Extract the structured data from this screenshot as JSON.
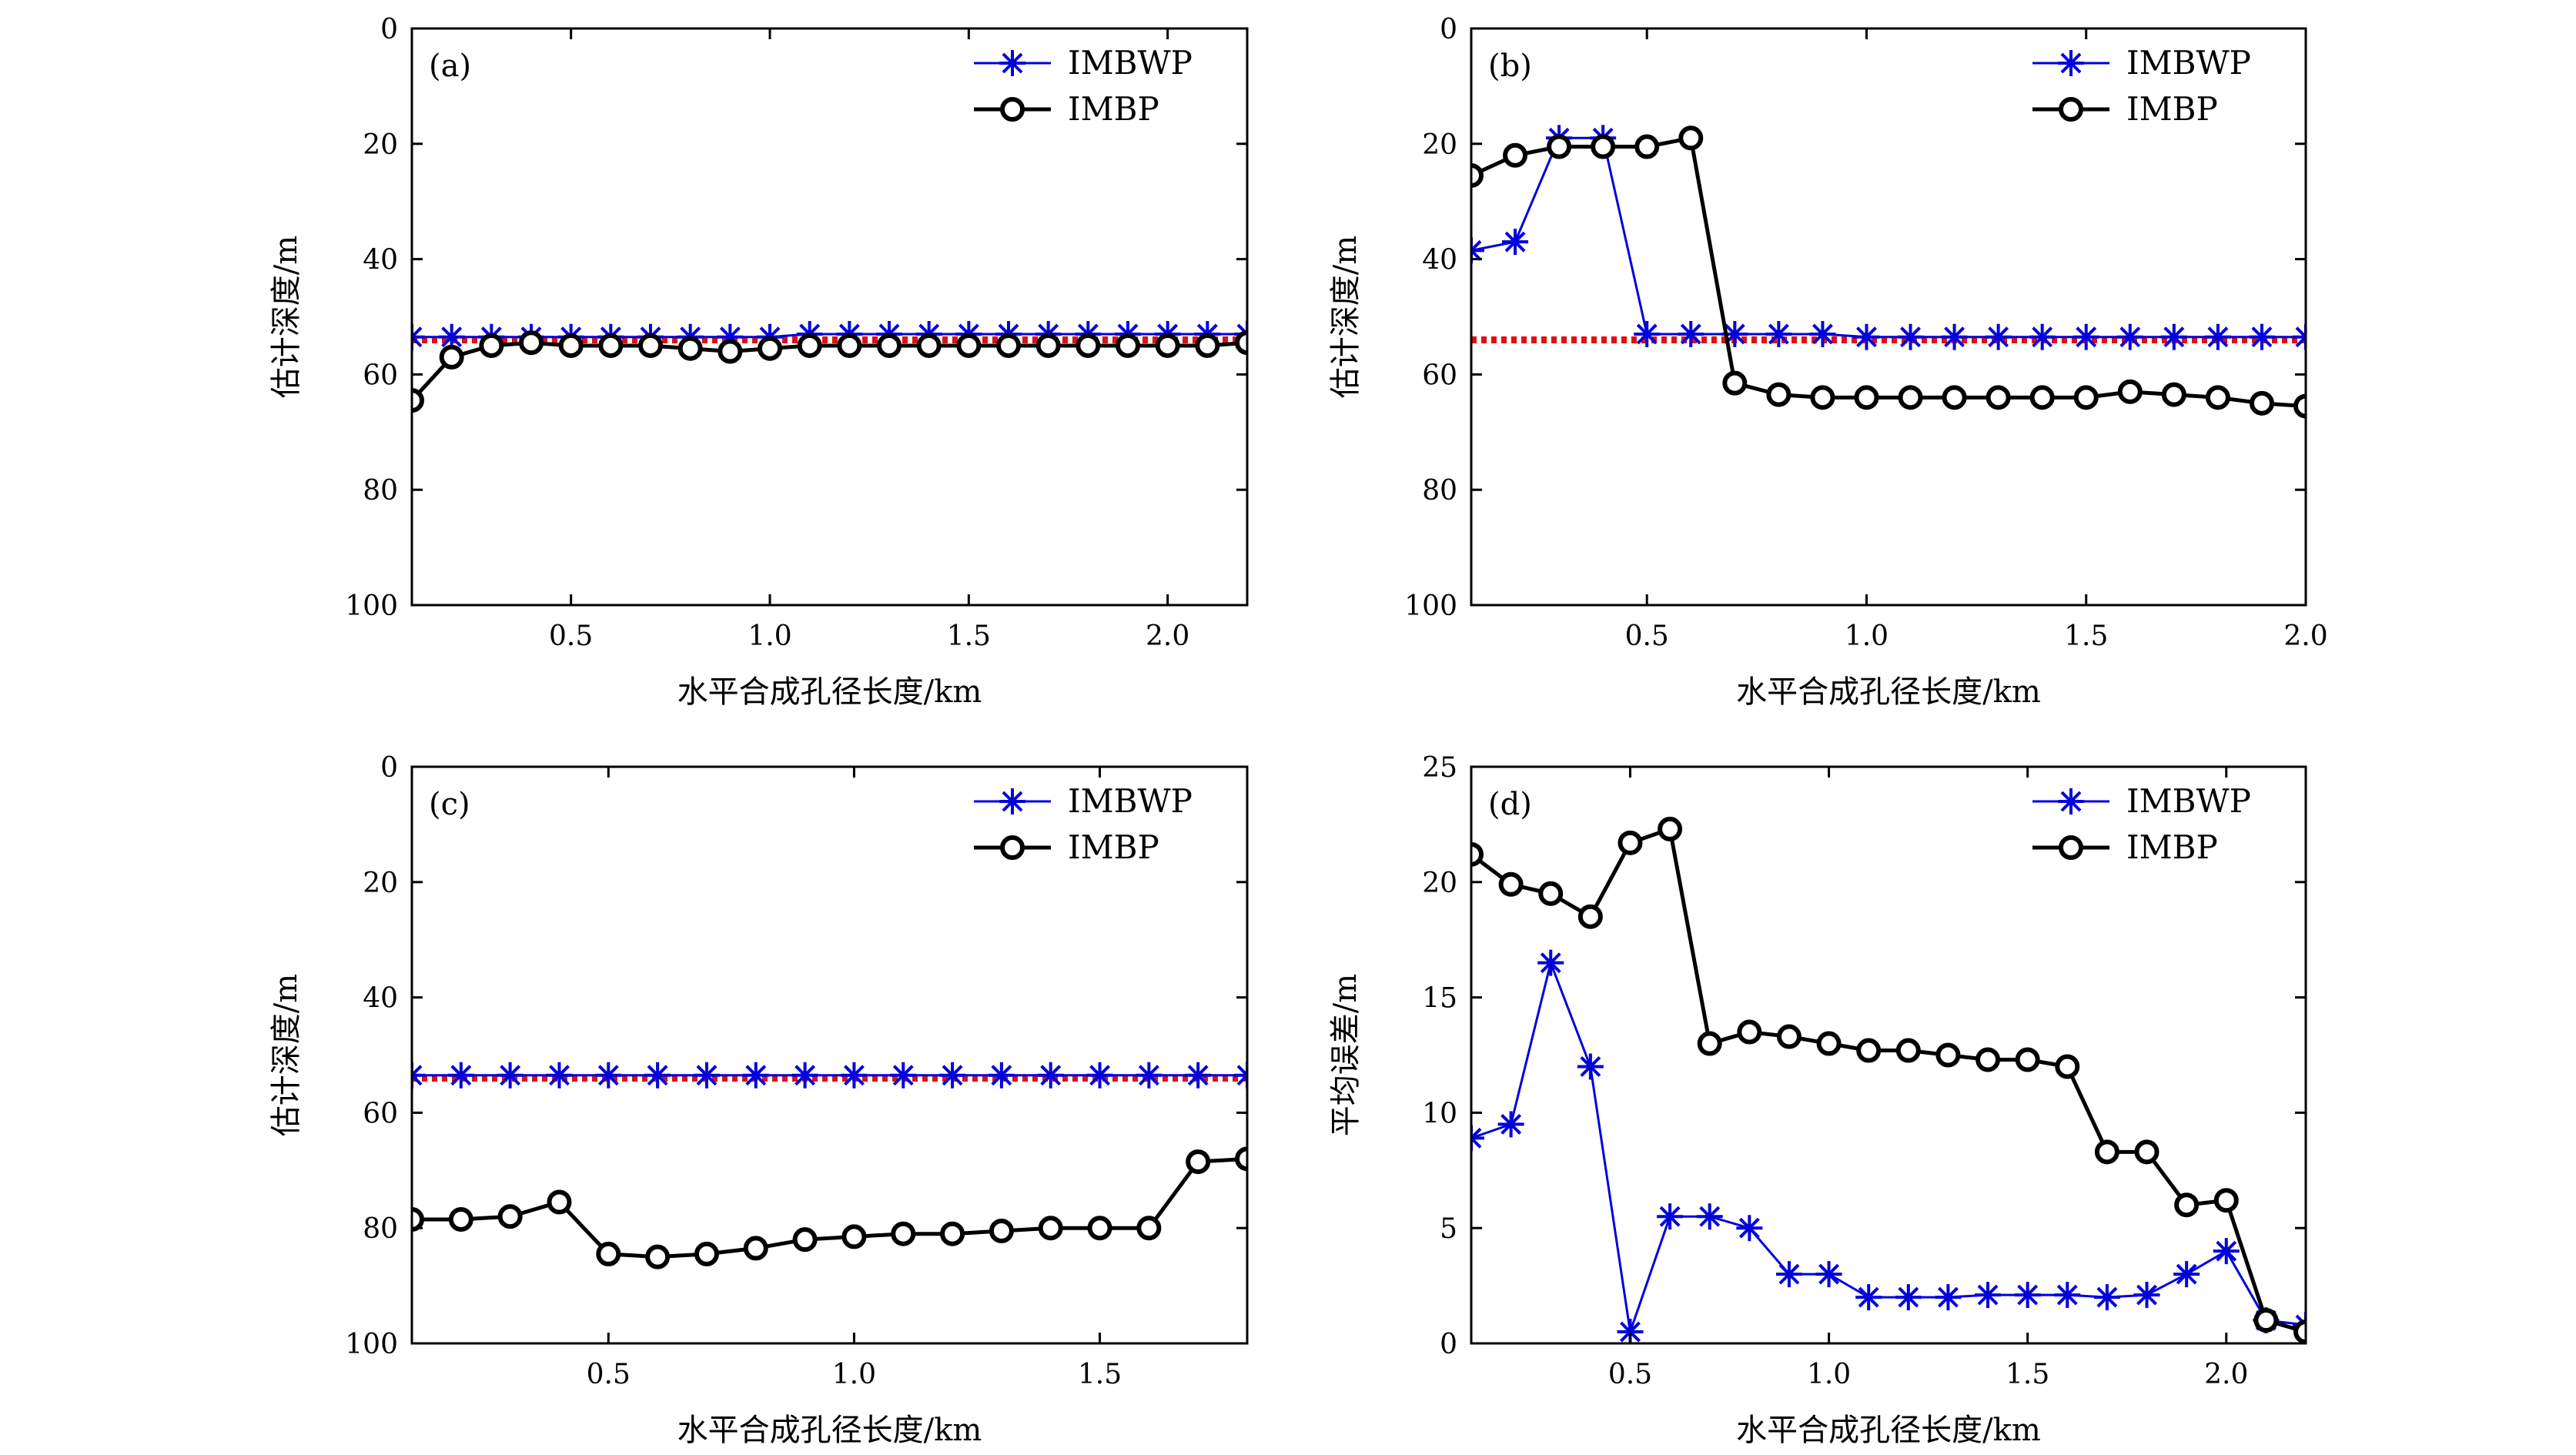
{
  "figure": {
    "background": "#ffffff",
    "colors": {
      "imbwp": "#0000dd",
      "imbp": "#000000",
      "reference": "#e01010",
      "axes": "#000000"
    }
  },
  "chart_data": [
    {
      "type": "line",
      "panel_label": "(a)",
      "xlabel": "水平合成孔径长度/km",
      "ylabel": "估计深度/m",
      "xlim": [
        0.1,
        2.2
      ],
      "ylim": [
        100,
        0
      ],
      "y_inverted": true,
      "xticks": [
        0.5,
        1.0,
        1.5,
        2.0
      ],
      "xticklabels": [
        "0.5",
        "1.0",
        "1.5",
        "2.0"
      ],
      "yticks": [
        0,
        20,
        40,
        60,
        80,
        100
      ],
      "yticklabels": [
        "0",
        "20",
        "40",
        "60",
        "80",
        "100"
      ],
      "legend_position": "top-right",
      "reference_line": {
        "y": 54,
        "style": "dotted"
      },
      "series": [
        {
          "name": "IMBWP",
          "marker": "asterisk",
          "x": [
            0.1,
            0.2,
            0.3,
            0.4,
            0.5,
            0.6,
            0.7,
            0.8,
            0.9,
            1.0,
            1.1,
            1.2,
            1.3,
            1.4,
            1.5,
            1.6,
            1.7,
            1.8,
            1.9,
            2.0,
            2.1,
            2.2
          ],
          "y": [
            53.5,
            53.5,
            53.5,
            53.5,
            53.5,
            53.5,
            53.5,
            53.5,
            53.5,
            53.5,
            53,
            53,
            53,
            53,
            53,
            53,
            53,
            53,
            53,
            53,
            53,
            53
          ]
        },
        {
          "name": "IMBP",
          "marker": "circle",
          "x": [
            0.1,
            0.2,
            0.3,
            0.4,
            0.5,
            0.6,
            0.7,
            0.8,
            0.9,
            1.0,
            1.1,
            1.2,
            1.3,
            1.4,
            1.5,
            1.6,
            1.7,
            1.8,
            1.9,
            2.0,
            2.1,
            2.2
          ],
          "y": [
            64.5,
            57,
            55,
            54.5,
            55,
            55,
            55,
            55.5,
            56,
            55.5,
            55,
            55,
            55,
            55,
            55,
            55,
            55,
            55,
            55,
            55,
            55,
            54.5
          ]
        }
      ]
    },
    {
      "type": "line",
      "panel_label": "(b)",
      "xlabel": "水平合成孔径长度/km",
      "ylabel": "估计深度/m",
      "xlim": [
        0.1,
        2.0
      ],
      "ylim": [
        100,
        0
      ],
      "y_inverted": true,
      "xticks": [
        0.5,
        1.0,
        1.5,
        2.0
      ],
      "xticklabels": [
        "0.5",
        "1.0",
        "1.5",
        "2.0"
      ],
      "yticks": [
        0,
        20,
        40,
        60,
        80,
        100
      ],
      "yticklabels": [
        "0",
        "20",
        "40",
        "60",
        "80",
        "100"
      ],
      "legend_position": "top-right",
      "reference_line": {
        "y": 54,
        "style": "dotted"
      },
      "series": [
        {
          "name": "IMBWP",
          "marker": "asterisk",
          "x": [
            0.1,
            0.2,
            0.3,
            0.4,
            0.5,
            0.6,
            0.7,
            0.8,
            0.9,
            1.0,
            1.1,
            1.2,
            1.3,
            1.4,
            1.5,
            1.6,
            1.7,
            1.8,
            1.9,
            2.0
          ],
          "y": [
            38.5,
            37,
            19,
            19,
            53,
            53,
            53,
            53,
            53,
            53.5,
            53.5,
            53.5,
            53.5,
            53.5,
            53.5,
            53.5,
            53.5,
            53.5,
            53.5,
            53.5
          ]
        },
        {
          "name": "IMBP",
          "marker": "circle",
          "x": [
            0.1,
            0.2,
            0.3,
            0.4,
            0.5,
            0.6,
            0.7,
            0.8,
            0.9,
            1.0,
            1.1,
            1.2,
            1.3,
            1.4,
            1.5,
            1.6,
            1.7,
            1.8,
            1.9,
            2.0
          ],
          "y": [
            25.5,
            22,
            20.5,
            20.5,
            20.5,
            19,
            61.5,
            63.5,
            64,
            64,
            64,
            64,
            64,
            64,
            64,
            63,
            63.5,
            64,
            65,
            65.5
          ]
        }
      ]
    },
    {
      "type": "line",
      "panel_label": "(c)",
      "xlabel": "水平合成孔径长度/km",
      "ylabel": "估计深度/m",
      "xlim": [
        0.1,
        1.8
      ],
      "ylim": [
        100,
        0
      ],
      "y_inverted": true,
      "xticks": [
        0.5,
        1.0,
        1.5
      ],
      "xticklabels": [
        "0.5",
        "1.0",
        "1.5"
      ],
      "yticks": [
        0,
        20,
        40,
        60,
        80,
        100
      ],
      "yticklabels": [
        "0",
        "20",
        "40",
        "60",
        "80",
        "100"
      ],
      "legend_position": "top-right",
      "reference_line": {
        "y": 54,
        "style": "dotted"
      },
      "series": [
        {
          "name": "IMBWP",
          "marker": "asterisk",
          "x": [
            0.1,
            0.2,
            0.3,
            0.4,
            0.5,
            0.6,
            0.7,
            0.8,
            0.9,
            1.0,
            1.1,
            1.2,
            1.3,
            1.4,
            1.5,
            1.6,
            1.7,
            1.8
          ],
          "y": [
            53.5,
            53.5,
            53.5,
            53.5,
            53.5,
            53.5,
            53.5,
            53.5,
            53.5,
            53.5,
            53.5,
            53.5,
            53.5,
            53.5,
            53.5,
            53.5,
            53.5,
            53.5
          ]
        },
        {
          "name": "IMBP",
          "marker": "circle",
          "x": [
            0.1,
            0.2,
            0.3,
            0.4,
            0.5,
            0.6,
            0.7,
            0.8,
            0.9,
            1.0,
            1.1,
            1.2,
            1.3,
            1.4,
            1.5,
            1.6,
            1.7,
            1.8
          ],
          "y": [
            78.5,
            78.5,
            78,
            75.5,
            84.5,
            85,
            84.5,
            83.5,
            82,
            81.5,
            81,
            81,
            80.5,
            80,
            80,
            80,
            68.5,
            68
          ]
        }
      ]
    },
    {
      "type": "line",
      "panel_label": "(d)",
      "xlabel": "水平合成孔径长度/km",
      "ylabel": "平均误差/m",
      "xlim": [
        0.1,
        2.2
      ],
      "ylim": [
        0,
        25
      ],
      "y_inverted": false,
      "xticks": [
        0.5,
        1.0,
        1.5,
        2.0
      ],
      "xticklabels": [
        "0.5",
        "1.0",
        "1.5",
        "2.0"
      ],
      "yticks": [
        0,
        5,
        10,
        15,
        20,
        25
      ],
      "yticklabels": [
        "0",
        "5",
        "10",
        "15",
        "20",
        "25"
      ],
      "legend_position": "top-right",
      "series": [
        {
          "name": "IMBWP",
          "marker": "asterisk",
          "x": [
            0.1,
            0.2,
            0.3,
            0.4,
            0.5,
            0.6,
            0.7,
            0.8,
            0.9,
            1.0,
            1.1,
            1.2,
            1.3,
            1.4,
            1.5,
            1.6,
            1.7,
            1.8,
            1.9,
            2.0,
            2.1,
            2.2
          ],
          "y": [
            8.9,
            9.5,
            16.5,
            12,
            0.5,
            5.5,
            5.5,
            5,
            3,
            3,
            2,
            2,
            2,
            2.1,
            2.1,
            2.1,
            2,
            2.1,
            3,
            4,
            1,
            0.8
          ]
        },
        {
          "name": "IMBP",
          "marker": "circle",
          "x": [
            0.1,
            0.2,
            0.3,
            0.4,
            0.5,
            0.6,
            0.7,
            0.8,
            0.9,
            1.0,
            1.1,
            1.2,
            1.3,
            1.4,
            1.5,
            1.6,
            1.7,
            1.8,
            1.9,
            2.0,
            2.1,
            2.2
          ],
          "y": [
            21.2,
            19.9,
            19.5,
            18.5,
            21.7,
            22.3,
            13,
            13.5,
            13.3,
            13,
            12.7,
            12.7,
            12.5,
            12.3,
            12.3,
            12,
            8.3,
            8.3,
            6,
            6.2,
            1,
            0.5
          ]
        }
      ]
    }
  ]
}
